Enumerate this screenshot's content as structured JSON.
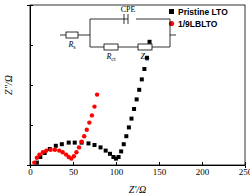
{
  "chart_data": {
    "type": "scatter",
    "x_label": "Z'/Ω",
    "y_label": "Z''/Ω",
    "xlim": [
      0,
      250
    ],
    "xticks": [
      0,
      50,
      100,
      150,
      200,
      250
    ],
    "ylim": [
      0,
      200
    ],
    "yticks": [
      0,
      50,
      100,
      150,
      200
    ],
    "tick_labels": "x",
    "legend": "top-right",
    "annotations": [
      "Rs",
      "CPE",
      "Rct",
      "Zw"
    ],
    "series": [
      {
        "name": "Pristine LTO",
        "color": "#000000",
        "marker": "square",
        "x": [
          8,
          12,
          17,
          23,
          30,
          37,
          45,
          52,
          60,
          68,
          75,
          82,
          88,
          93,
          97,
          100,
          103,
          106,
          109,
          112,
          115,
          118,
          121,
          124,
          127,
          130,
          133,
          136,
          139
        ],
        "values": [
          3,
          10,
          15,
          20,
          24,
          26,
          28,
          28,
          28,
          27,
          25,
          22,
          18,
          14,
          10,
          8,
          10,
          17,
          26,
          36,
          47,
          58,
          70,
          82,
          94,
          107,
          120,
          134,
          154
        ]
      },
      {
        "name": "1/9LBLTO",
        "color": "#ff0000",
        "marker": "circle",
        "x": [
          5,
          8,
          11,
          15,
          19,
          24,
          29,
          34,
          38,
          42,
          45,
          48,
          51,
          54,
          57,
          60,
          63,
          66,
          69,
          72,
          75,
          78
        ],
        "values": [
          3,
          9,
          13,
          16,
          18,
          19,
          19,
          18,
          16,
          13,
          10,
          8,
          11,
          16,
          22,
          29,
          36,
          44,
          53,
          62,
          73,
          88
        ]
      }
    ]
  }
}
